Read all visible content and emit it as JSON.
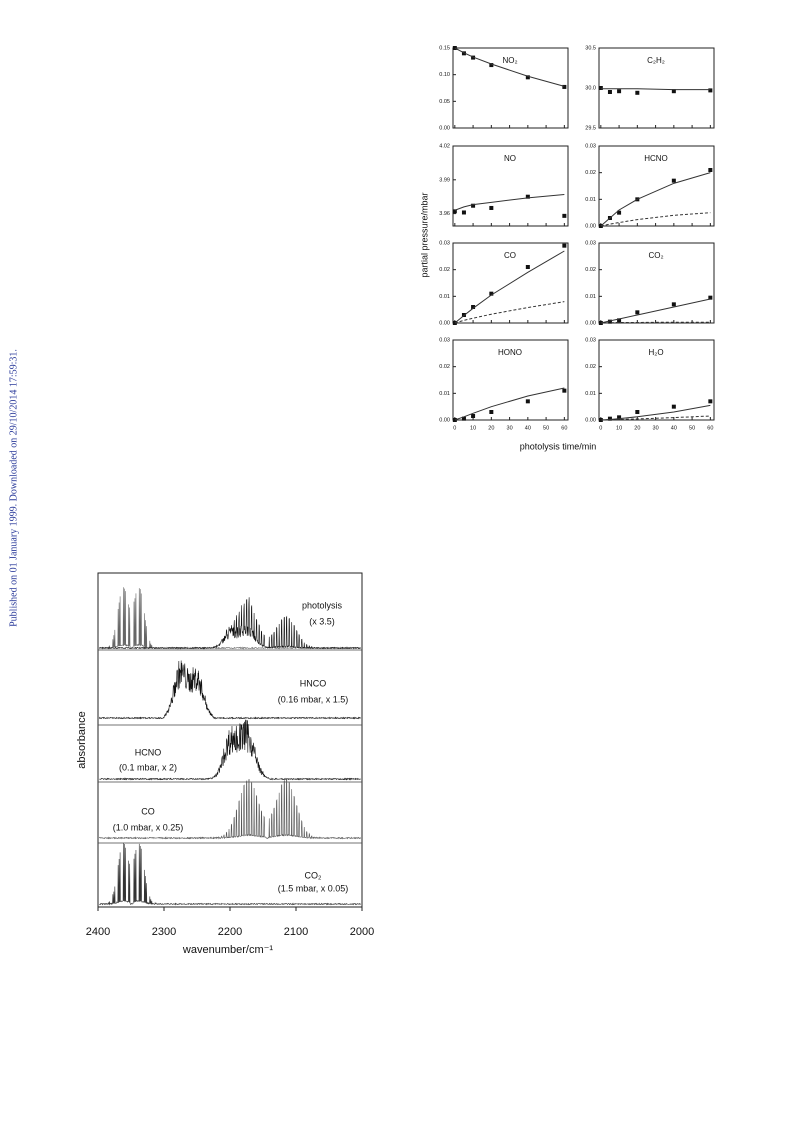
{
  "side_note": "Published on 01 January 1999. Downloaded on 29/10/2014 17:59:31.",
  "figure_kinetics": {
    "y_label": "partial pressure/mbar",
    "x_label": "photolysis time/min"
  },
  "chart_data": [
    {
      "type": "scatter",
      "title": "NO₂",
      "x": [
        0,
        5,
        10,
        20,
        40,
        60
      ],
      "xlim": [
        -1,
        62
      ],
      "xticks": [
        0,
        10,
        20,
        30,
        40,
        50,
        60
      ],
      "show_xtick_labels": false,
      "ylim": [
        0,
        0.15
      ],
      "yticks": [
        {
          "value": 0,
          "label": "0.00"
        },
        {
          "value": 0.05,
          "label": "0.05"
        },
        {
          "value": 0.1,
          "label": "0.10"
        },
        {
          "value": 0.15,
          "label": "0.15"
        }
      ],
      "series": [
        {
          "style": "points",
          "values": [
            0.15,
            0.14,
            0.132,
            0.118,
            0.095,
            0.077
          ]
        },
        {
          "style": "solid",
          "values": [
            0.15,
            0.141,
            0.133,
            0.12,
            0.097,
            0.078
          ]
        }
      ]
    },
    {
      "type": "scatter",
      "title": "C₂H₂",
      "x": [
        0,
        5,
        10,
        20,
        40,
        60
      ],
      "xlim": [
        -1,
        62
      ],
      "xticks": [
        0,
        10,
        20,
        30,
        40,
        50,
        60
      ],
      "show_xtick_labels": false,
      "ylim": [
        29.5,
        30.5
      ],
      "yticks": [
        {
          "value": 29.5,
          "label": "29.5"
        },
        {
          "value": 30,
          "label": "30.0"
        },
        {
          "value": 30.5,
          "label": "30.5"
        }
      ],
      "series": [
        {
          "style": "points",
          "values": [
            30.0,
            29.95,
            29.96,
            29.94,
            29.96,
            29.97
          ]
        },
        {
          "style": "solid",
          "values": [
            29.99,
            29.99,
            29.99,
            29.99,
            29.98,
            29.98
          ]
        }
      ]
    },
    {
      "type": "scatter",
      "title": "NO",
      "x": [
        0,
        5,
        10,
        20,
        40,
        60
      ],
      "xlim": [
        -1,
        62
      ],
      "xticks": [
        0,
        10,
        20,
        30,
        40,
        50,
        60
      ],
      "show_xtick_labels": false,
      "ylim": [
        3.949,
        4.02
      ],
      "yticks": [
        {
          "value": 3.96,
          "label": "3.96"
        },
        {
          "value": 3.99,
          "label": "3.99"
        },
        {
          "value": 4.02,
          "label": "4.02"
        }
      ],
      "series": [
        {
          "style": "points",
          "values": [
            3.962,
            3.961,
            3.967,
            3.965,
            3.975,
            3.958
          ]
        },
        {
          "style": "solid",
          "values": [
            3.963,
            3.966,
            3.968,
            3.97,
            3.974,
            3.977
          ]
        }
      ]
    },
    {
      "type": "scatter",
      "title": "HCNO",
      "x": [
        0,
        5,
        10,
        20,
        40,
        60
      ],
      "xlim": [
        -1,
        62
      ],
      "xticks": [
        0,
        10,
        20,
        30,
        40,
        50,
        60
      ],
      "show_xtick_labels": false,
      "ylim": [
        0,
        0.03
      ],
      "yticks": [
        {
          "value": 0,
          "label": "0.00"
        },
        {
          "value": 0.01,
          "label": "0.01"
        },
        {
          "value": 0.02,
          "label": "0.02"
        },
        {
          "value": 0.03,
          "label": "0.03"
        }
      ],
      "series": [
        {
          "style": "points",
          "values": [
            0,
            0.003,
            0.005,
            0.01,
            0.017,
            0.021
          ]
        },
        {
          "style": "solid",
          "values": [
            0,
            0.003,
            0.006,
            0.01,
            0.016,
            0.02
          ]
        },
        {
          "style": "dashed",
          "values": [
            0,
            0.0007,
            0.0013,
            0.0024,
            0.004,
            0.005
          ]
        }
      ]
    },
    {
      "type": "scatter",
      "title": "CO",
      "x": [
        0,
        5,
        10,
        20,
        40,
        60
      ],
      "xlim": [
        -1,
        62
      ],
      "xticks": [
        0,
        10,
        20,
        30,
        40,
        50,
        60
      ],
      "show_xtick_labels": false,
      "ylim": [
        0,
        0.03
      ],
      "yticks": [
        {
          "value": 0,
          "label": "0.00"
        },
        {
          "value": 0.01,
          "label": "0.01"
        },
        {
          "value": 0.02,
          "label": "0.02"
        },
        {
          "value": 0.03,
          "label": "0.03"
        }
      ],
      "series": [
        {
          "style": "points",
          "values": [
            0,
            0.003,
            0.006,
            0.011,
            0.021,
            0.029
          ]
        },
        {
          "style": "solid",
          "values": [
            0,
            0.0028,
            0.0055,
            0.0105,
            0.019,
            0.027
          ]
        },
        {
          "style": "dashed",
          "values": [
            0,
            0.001,
            0.0018,
            0.0033,
            0.0058,
            0.008
          ]
        }
      ]
    },
    {
      "type": "scatter",
      "title": "CO₂",
      "x": [
        0,
        5,
        10,
        20,
        40,
        60
      ],
      "xlim": [
        -1,
        62
      ],
      "xticks": [
        0,
        10,
        20,
        30,
        40,
        50,
        60
      ],
      "show_xtick_labels": false,
      "ylim": [
        0,
        0.03
      ],
      "yticks": [
        {
          "value": 0,
          "label": "0.00"
        },
        {
          "value": 0.01,
          "label": "0.01"
        },
        {
          "value": 0.02,
          "label": "0.02"
        },
        {
          "value": 0.03,
          "label": "0.03"
        }
      ],
      "series": [
        {
          "style": "points",
          "values": [
            0,
            0.0005,
            0.001,
            0.004,
            0.007,
            0.0095
          ]
        },
        {
          "style": "solid",
          "values": [
            0,
            0.0008,
            0.0015,
            0.003,
            0.006,
            0.009
          ]
        },
        {
          "style": "dashed",
          "values": [
            0,
            0.0001,
            0.0002,
            0.0002,
            0.0003,
            0.0003
          ]
        }
      ]
    },
    {
      "type": "scatter",
      "title": "HONO",
      "x": [
        0,
        5,
        10,
        20,
        40,
        60
      ],
      "xlim": [
        -1,
        62
      ],
      "xticks": [
        0,
        10,
        20,
        30,
        40,
        50,
        60
      ],
      "show_xtick_labels": true,
      "ylim": [
        0,
        0.03
      ],
      "yticks": [
        {
          "value": 0,
          "label": "0.00"
        },
        {
          "value": 0.01,
          "label": "0.01"
        },
        {
          "value": 0.02,
          "label": "0.02"
        },
        {
          "value": 0.03,
          "label": "0.03"
        }
      ],
      "series": [
        {
          "style": "points",
          "values": [
            0,
            0.0005,
            0.0015,
            0.003,
            0.007,
            0.011
          ]
        },
        {
          "style": "solid",
          "values": [
            0,
            0.0012,
            0.0025,
            0.005,
            0.009,
            0.012
          ]
        }
      ]
    },
    {
      "type": "scatter",
      "title": "H₂O",
      "x": [
        0,
        5,
        10,
        20,
        40,
        60
      ],
      "xlim": [
        -1,
        62
      ],
      "xticks": [
        0,
        10,
        20,
        30,
        40,
        50,
        60
      ],
      "show_xtick_labels": true,
      "ylim": [
        0,
        0.03
      ],
      "yticks": [
        {
          "value": 0,
          "label": "0.00"
        },
        {
          "value": 0.01,
          "label": "0.01"
        },
        {
          "value": 0.02,
          "label": "0.02"
        },
        {
          "value": 0.03,
          "label": "0.03"
        }
      ],
      "series": [
        {
          "style": "points",
          "values": [
            0,
            0.0005,
            0.001,
            0.003,
            0.005,
            0.007
          ]
        },
        {
          "style": "solid",
          "values": [
            0,
            0.0002,
            0.0005,
            0.0012,
            0.003,
            0.0055
          ]
        },
        {
          "style": "dashed",
          "values": [
            0,
            0.0001,
            0.0002,
            0.0004,
            0.0009,
            0.0015
          ]
        }
      ]
    },
    {
      "type": "spectrum",
      "x_label": "wavenumber/cm⁻¹",
      "y_label": "absorbance",
      "xlim": [
        2400,
        2000
      ],
      "xticks": [
        2400,
        2300,
        2200,
        2100,
        2000
      ],
      "traces": [
        {
          "label": "photolysis",
          "note": "(x 3.5)"
        },
        {
          "label": "HNCO",
          "note": "(0.16 mbar, x 1.5)"
        },
        {
          "label": "HCNO",
          "note": "(0.1 mbar, x 2)"
        },
        {
          "label": "CO",
          "note": "(1.0 mbar, x 0.25)"
        },
        {
          "label": "CO₂",
          "note": "(1.5 mbar, x 0.05)"
        }
      ]
    }
  ]
}
